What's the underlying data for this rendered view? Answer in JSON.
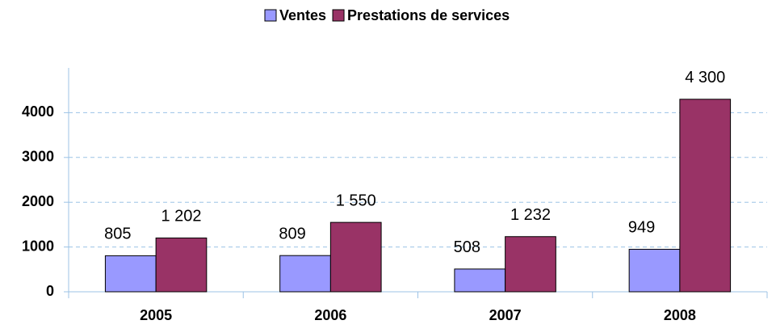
{
  "chart_data": {
    "type": "bar",
    "categories": [
      "2005",
      "2006",
      "2007",
      "2008"
    ],
    "series": [
      {
        "name": "Ventes",
        "color": "#9999ff",
        "values": [
          805,
          809,
          508,
          949
        ],
        "value_labels": [
          "805",
          "809",
          "508",
          "949"
        ]
      },
      {
        "name": "Prestations de services",
        "color": "#993366",
        "values": [
          1202,
          1550,
          1232,
          4300
        ],
        "value_labels": [
          "1 202",
          "1 550",
          "1 232",
          "4 300"
        ]
      }
    ],
    "ylim": [
      0,
      5000
    ],
    "yticks": [
      0,
      1000,
      2000,
      3000,
      4000
    ],
    "grid": true,
    "legend": "top"
  }
}
